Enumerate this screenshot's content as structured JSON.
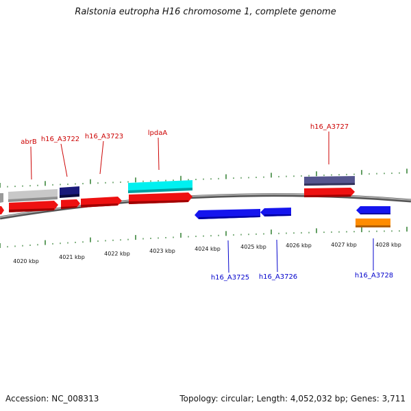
{
  "title": "Ralstonia eutropha H16 chromosome 1, complete genome",
  "footer": {
    "accession": "Accession: NC_008313",
    "summary": "Topology: circular; Length: 4,052,032 bp; Genes: 3,711"
  },
  "colors": {
    "forward_label": "#cc0000",
    "reverse_label": "#0000cc",
    "backbone": "#808080",
    "tick": "#2e7d2e",
    "red_feature": "#ee1111",
    "blue_feature": "#1111ee",
    "navy_feature": "#14146e",
    "slate_feature": "#4a4a8a",
    "cyan_feature": "#00eeee",
    "gray_feature": "#c0c0c0",
    "orange_feature": "#ff8c00"
  },
  "kbp_labels": [
    "4020 kbp",
    "4021 kbp",
    "4022 kbp",
    "4023 kbp",
    "4024 kbp",
    "4025 kbp",
    "4026 kbp",
    "4027 kbp",
    "4028 kbp"
  ],
  "forward_gene_labels": [
    "abrB",
    "h16_A3722",
    "h16_A3723",
    "lpdaA",
    "h16_A3727"
  ],
  "reverse_gene_labels": [
    "h16_A3725",
    "h16_A3726",
    "h16_A3728"
  ]
}
